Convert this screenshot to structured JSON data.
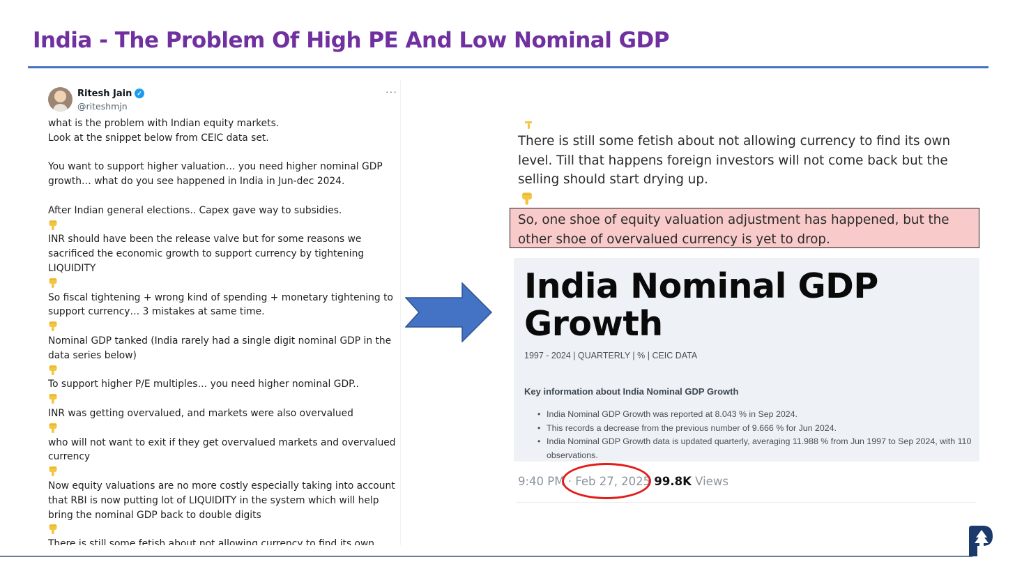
{
  "slide": {
    "title": "India - The Problem Of High PE And Low Nominal GDP"
  },
  "tweet": {
    "author": "Ritesh Jain",
    "handle": "@riteshmjn",
    "verified_glyph": "✓",
    "more_glyph": "···",
    "lines": [
      {
        "t": "text",
        "v": "what is the problem with Indian equity markets."
      },
      {
        "t": "text",
        "v": "Look at the snippet below from CEIC data set."
      },
      {
        "t": "gap"
      },
      {
        "t": "text",
        "v": "You want to support higher valuation… you need higher nominal GDP"
      },
      {
        "t": "text",
        "v": "growth… what do you see happened in India in Jun-dec 2024."
      },
      {
        "t": "gap"
      },
      {
        "t": "text",
        "v": "After Indian general elections.. Capex gave way to subsidies."
      },
      {
        "t": "emoji"
      },
      {
        "t": "text",
        "v": "INR should have been the release valve but for some reasons we"
      },
      {
        "t": "text",
        "v": "sacrificed the economic growth to support currency by tightening"
      },
      {
        "t": "text",
        "v": "LIQUIDITY"
      },
      {
        "t": "emoji"
      },
      {
        "t": "text",
        "v": "So fiscal tightening + wrong kind of spending + monetary tightening to"
      },
      {
        "t": "text",
        "v": "support currency… 3 mistakes at same time."
      },
      {
        "t": "emoji"
      },
      {
        "t": "text",
        "v": "Nominal GDP tanked (India rarely had a single digit nominal GDP in the"
      },
      {
        "t": "text",
        "v": "data series below)"
      },
      {
        "t": "emoji"
      },
      {
        "t": "text",
        "v": "To support higher P/E multiples… you need higher nominal GDP.."
      },
      {
        "t": "emoji"
      },
      {
        "t": "text",
        "v": "INR was getting overvalued, and markets were also overvalued"
      },
      {
        "t": "emoji"
      },
      {
        "t": "text",
        "v": "who will not want to exit if they get overvalued markets and overvalued"
      },
      {
        "t": "text",
        "v": "currency"
      },
      {
        "t": "emoji"
      },
      {
        "t": "text",
        "v": "Now equity valuations are no more costly especially taking into account"
      },
      {
        "t": "text",
        "v": "that RBI is now putting lot of LIQUIDITY in the system which will help"
      },
      {
        "t": "text",
        "v": "bring the nominal GDP back to double digits"
      },
      {
        "t": "emoji"
      },
      {
        "t": "text",
        "v": "There is still some fetish about not allowing currency to find its own"
      }
    ]
  },
  "snippet": {
    "lines": [
      "There is still some fetish about not allowing currency to find its own",
      "level. Till that happens foreign investors will not come back but the",
      "selling should start drying up."
    ],
    "highlight": [
      "So, one shoe of equity valuation adjustment has happened, but the",
      "other shoe of overvalued currency is yet to drop."
    ],
    "ceic": {
      "title_line1": "India Nominal GDP",
      "title_line2": "Growth",
      "subtitle": "1997 - 2024 | QUARTERLY | % | CEIC DATA",
      "key_heading": "Key information about India Nominal GDP Growth",
      "bullets": [
        "India Nominal GDP Growth was reported at 8.043 % in Sep 2024.",
        "This records a decrease from the previous number of 9.666 % for Jun 2024.",
        "India Nominal GDP Growth data is updated quarterly, averaging 11.988 % from Jun 1997 to Sep 2024, with 110 observations."
      ]
    },
    "meta": {
      "time": "9:40 PM",
      "sep": "·",
      "date": "Feb 27, 2025",
      "views_count": "99.8K",
      "views_label": "Views"
    }
  },
  "colors": {
    "title": "#7030a0",
    "rule": "#4472c4",
    "arrow": "#4472c4",
    "highlight": "#f9caca",
    "oval": "#e31b1b",
    "verified": "#1d9bf0"
  }
}
